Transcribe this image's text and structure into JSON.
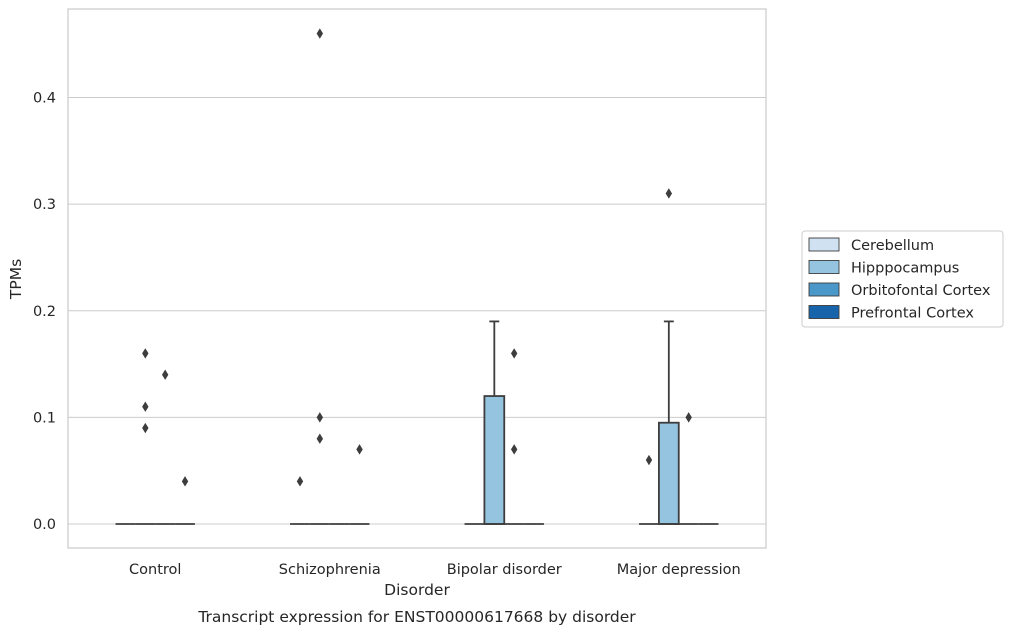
{
  "chart_data": {
    "type": "box",
    "caption": "Transcript expression for ENST00000617668 by disorder",
    "xlabel": "Disorder",
    "ylabel": "TPMs",
    "ylim": [
      -0.0225,
      0.483
    ],
    "yticks": [
      "0.0",
      "0.1",
      "0.2",
      "0.3",
      "0.4"
    ],
    "grid": true,
    "legend_position": "right",
    "categories": [
      "Control",
      "Schizophrenia",
      "Bipolar disorder",
      "Major depression"
    ],
    "series": [
      {
        "name": "Cerebellum",
        "color": "#d0e1f2"
      },
      {
        "name": "Hipppocampus",
        "color": "#94c4df"
      },
      {
        "name": "Orbitofontal Cortex",
        "color": "#4a98c9"
      },
      {
        "name": "Prefrontal Cortex",
        "color": "#1764ab"
      }
    ],
    "boxes": [
      {
        "category": "Control",
        "series": "Cerebellum",
        "whisker_low": 0,
        "q1": 0,
        "median": 0,
        "q3": 0,
        "whisker_high": 0,
        "outliers": []
      },
      {
        "category": "Control",
        "series": "Hipppocampus",
        "whisker_low": 0,
        "q1": 0,
        "median": 0,
        "q3": 0,
        "whisker_high": 0,
        "outliers": [
          0.09,
          0.11,
          0.16
        ]
      },
      {
        "category": "Control",
        "series": "Orbitofontal Cortex",
        "whisker_low": 0,
        "q1": 0,
        "median": 0,
        "q3": 0,
        "whisker_high": 0,
        "outliers": [
          0.14
        ]
      },
      {
        "category": "Control",
        "series": "Prefrontal Cortex",
        "whisker_low": 0,
        "q1": 0,
        "median": 0,
        "q3": 0,
        "whisker_high": 0,
        "outliers": [
          0.04
        ]
      },
      {
        "category": "Schizophrenia",
        "series": "Cerebellum",
        "whisker_low": 0,
        "q1": 0,
        "median": 0,
        "q3": 0,
        "whisker_high": 0,
        "outliers": [
          0.04
        ]
      },
      {
        "category": "Schizophrenia",
        "series": "Hipppocampus",
        "whisker_low": 0,
        "q1": 0,
        "median": 0,
        "q3": 0,
        "whisker_high": 0,
        "outliers": [
          0.08,
          0.1,
          0.46
        ]
      },
      {
        "category": "Schizophrenia",
        "series": "Orbitofontal Cortex",
        "whisker_low": 0,
        "q1": 0,
        "median": 0,
        "q3": 0,
        "whisker_high": 0,
        "outliers": []
      },
      {
        "category": "Schizophrenia",
        "series": "Prefrontal Cortex",
        "whisker_low": 0,
        "q1": 0,
        "median": 0,
        "q3": 0,
        "whisker_high": 0,
        "outliers": [
          0.07
        ]
      },
      {
        "category": "Bipolar disorder",
        "series": "Cerebellum",
        "whisker_low": 0,
        "q1": 0,
        "median": 0,
        "q3": 0,
        "whisker_high": 0,
        "outliers": []
      },
      {
        "category": "Bipolar disorder",
        "series": "Hipppocampus",
        "whisker_low": 0,
        "q1": 0,
        "median": 0,
        "q3": 0.12,
        "whisker_high": 0.19,
        "outliers": []
      },
      {
        "category": "Bipolar disorder",
        "series": "Orbitofontal Cortex",
        "whisker_low": 0,
        "q1": 0,
        "median": 0,
        "q3": 0,
        "whisker_high": 0,
        "outliers": [
          0.07,
          0.16
        ]
      },
      {
        "category": "Bipolar disorder",
        "series": "Prefrontal Cortex",
        "whisker_low": 0,
        "q1": 0,
        "median": 0,
        "q3": 0,
        "whisker_high": 0,
        "outliers": []
      },
      {
        "category": "Major depression",
        "series": "Cerebellum",
        "whisker_low": 0,
        "q1": 0,
        "median": 0,
        "q3": 0,
        "whisker_high": 0,
        "outliers": [
          0.06
        ]
      },
      {
        "category": "Major depression",
        "series": "Hipppocampus",
        "whisker_low": 0,
        "q1": 0,
        "median": 0,
        "q3": 0.095,
        "whisker_high": 0.19,
        "outliers": [
          0.31
        ]
      },
      {
        "category": "Major depression",
        "series": "Orbitofontal Cortex",
        "whisker_low": 0,
        "q1": 0,
        "median": 0,
        "q3": 0,
        "whisker_high": 0,
        "outliers": [
          0.1
        ]
      },
      {
        "category": "Major depression",
        "series": "Prefrontal Cortex",
        "whisker_low": 0,
        "q1": 0,
        "median": 0,
        "q3": 0,
        "whisker_high": 0,
        "outliers": []
      }
    ]
  }
}
